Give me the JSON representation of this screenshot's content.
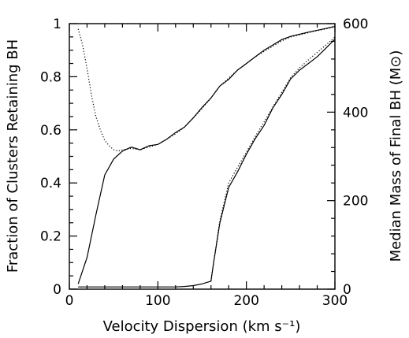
{
  "chart_data": {
    "type": "line",
    "xlabel": "Velocity Dispersion (km s⁻¹)",
    "ylabel_left": "Fraction of Clusters Retaining BH",
    "ylabel_right": "Median Mass of Final BH (M⊙)",
    "xlim": [
      0,
      300
    ],
    "ylim_left": [
      0,
      1
    ],
    "ylim_right": [
      0,
      600
    ],
    "x_ticks": [
      0,
      100,
      200,
      300
    ],
    "y_ticks_left": [
      0,
      0.2,
      0.4,
      0.6,
      0.8,
      1
    ],
    "y_ticks_right": [
      0,
      200,
      400,
      600
    ],
    "grid": false,
    "legend": "none",
    "series": [
      {
        "axis": "left",
        "style": "solid",
        "x": [
          10,
          20,
          30,
          40,
          50,
          60,
          70,
          80,
          90,
          100,
          110,
          120,
          130,
          140,
          150,
          160,
          170,
          180,
          190,
          200,
          210,
          220,
          230,
          240,
          250,
          260,
          270,
          280,
          290,
          300
        ],
        "y": [
          0.02,
          0.12,
          0.28,
          0.43,
          0.49,
          0.52,
          0.535,
          0.525,
          0.54,
          0.545,
          0.565,
          0.59,
          0.61,
          0.645,
          0.685,
          0.72,
          0.765,
          0.79,
          0.825,
          0.85,
          0.875,
          0.9,
          0.92,
          0.94,
          0.952,
          0.96,
          0.968,
          0.975,
          0.982,
          0.99
        ]
      },
      {
        "axis": "left",
        "style": "dotted",
        "x": [
          10,
          15,
          20,
          25,
          30,
          35,
          40,
          45,
          50,
          55,
          60,
          70,
          80,
          90,
          100,
          110,
          120,
          130,
          140,
          150,
          160,
          170,
          180,
          190,
          200,
          210,
          220,
          230,
          240,
          250,
          260,
          270,
          280,
          290,
          300
        ],
        "y": [
          0.98,
          0.92,
          0.83,
          0.73,
          0.65,
          0.6,
          0.56,
          0.54,
          0.525,
          0.52,
          0.525,
          0.53,
          0.525,
          0.535,
          0.545,
          0.565,
          0.585,
          0.61,
          0.645,
          0.68,
          0.72,
          0.765,
          0.795,
          0.825,
          0.85,
          0.875,
          0.895,
          0.915,
          0.935,
          0.95,
          0.958,
          0.966,
          0.974,
          0.98,
          0.988
        ]
      },
      {
        "axis": "right",
        "style": "solid",
        "x": [
          10,
          20,
          40,
          60,
          80,
          100,
          120,
          130,
          140,
          150,
          155,
          160,
          163,
          170,
          180,
          190,
          200,
          210,
          220,
          230,
          240,
          250,
          260,
          270,
          280,
          290,
          300
        ],
        "y": [
          5,
          5,
          5,
          5,
          5,
          5,
          5,
          6,
          8,
          12,
          15,
          18,
          60,
          150,
          230,
          265,
          305,
          340,
          370,
          410,
          440,
          475,
          495,
          510,
          525,
          545,
          565
        ]
      },
      {
        "axis": "right",
        "style": "dotted",
        "x": [
          160,
          163,
          170,
          180,
          190,
          200,
          210,
          220,
          230,
          240,
          250,
          260,
          270,
          280,
          290,
          300
        ],
        "y": [
          18,
          60,
          155,
          240,
          275,
          310,
          345,
          378,
          412,
          445,
          478,
          500,
          518,
          535,
          552,
          570
        ]
      }
    ]
  }
}
